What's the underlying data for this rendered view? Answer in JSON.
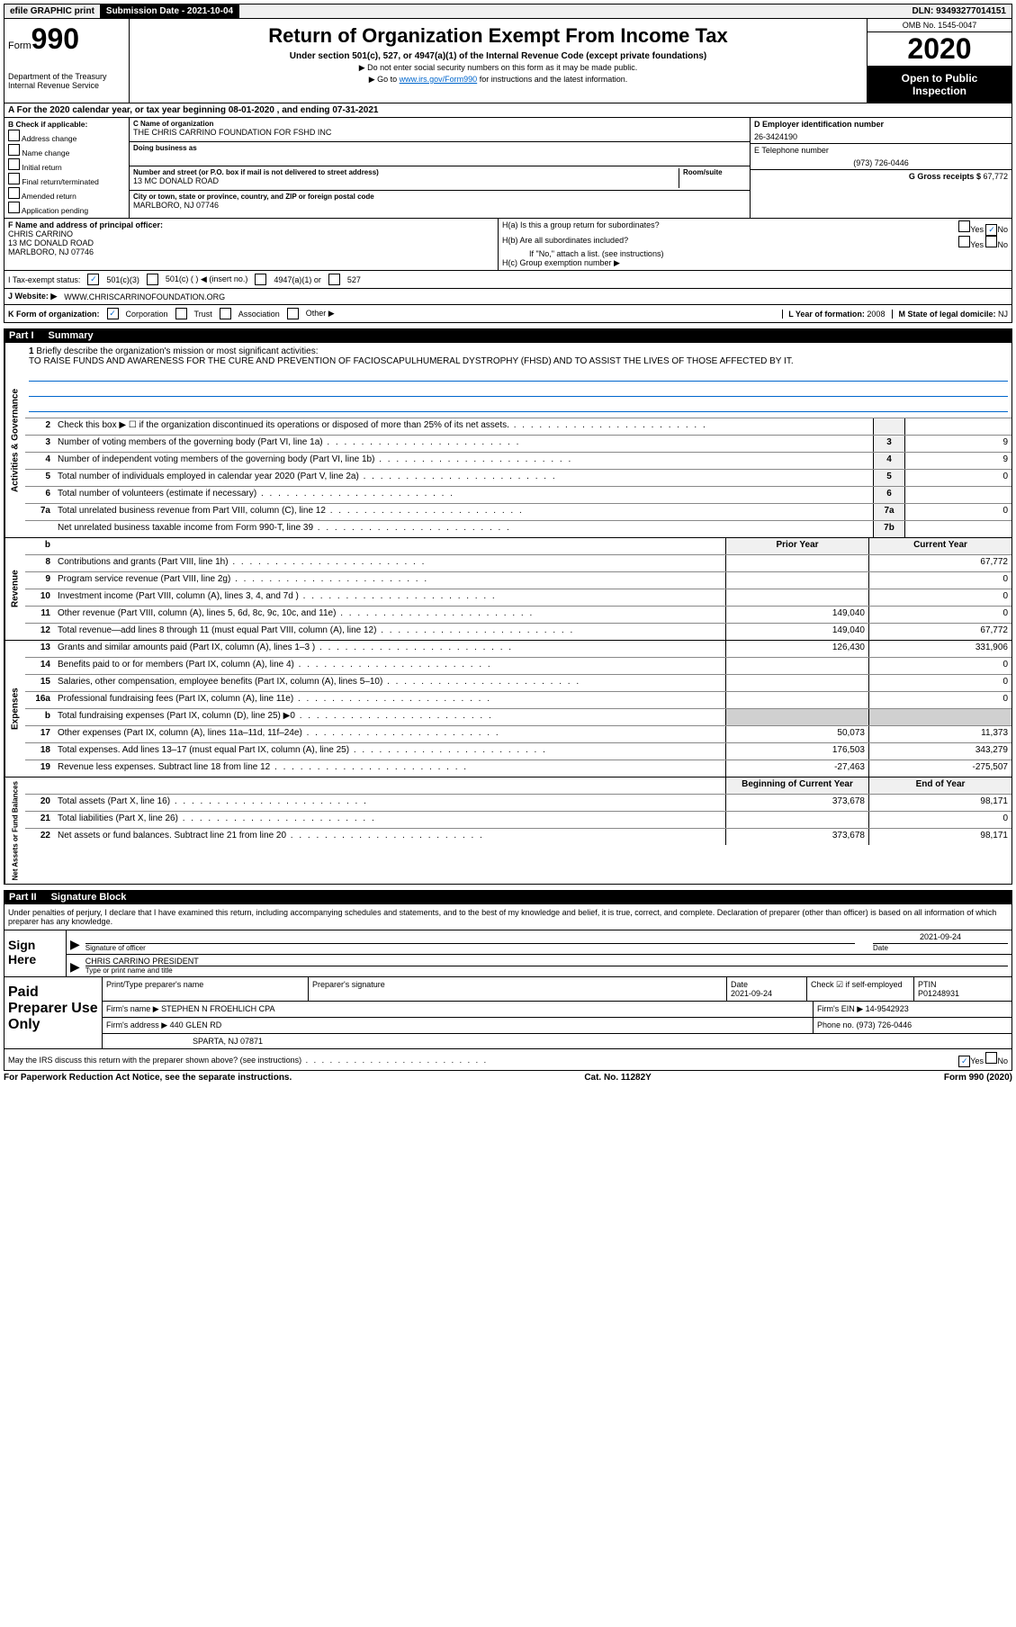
{
  "top": {
    "efile": "efile GRAPHIC print",
    "sub_label": "Submission Date - 2021-10-04",
    "dln": "DLN: 93493277014151"
  },
  "header": {
    "form_word": "Form",
    "form_num": "990",
    "dept": "Department of the Treasury",
    "irs": "Internal Revenue Service",
    "title": "Return of Organization Exempt From Income Tax",
    "sub1": "Under section 501(c), 527, or 4947(a)(1) of the Internal Revenue Code (except private foundations)",
    "sub2": "▶ Do not enter social security numbers on this form as it may be made public.",
    "sub3_pre": "▶ Go to ",
    "sub3_link": "www.irs.gov/Form990",
    "sub3_post": " for instructions and the latest information.",
    "omb": "OMB No. 1545-0047",
    "year": "2020",
    "inspect1": "Open to Public",
    "inspect2": "Inspection"
  },
  "rowA": "A For the 2020 calendar year, or tax year beginning 08-01-2020    , and ending 07-31-2021",
  "colB": {
    "title": "B Check if applicable:",
    "opts": [
      "Address change",
      "Name change",
      "Initial return",
      "Final return/terminated",
      "Amended return",
      "Application pending"
    ]
  },
  "colC": {
    "name_lbl": "C Name of organization",
    "name": "THE CHRIS CARRINO FOUNDATION FOR FSHD INC",
    "dba_lbl": "Doing business as",
    "addr_lbl": "Number and street (or P.O. box if mail is not delivered to street address)",
    "room_lbl": "Room/suite",
    "addr": "13 MC DONALD ROAD",
    "city_lbl": "City or town, state or province, country, and ZIP or foreign postal code",
    "city": "MARLBORO, NJ  07746"
  },
  "colDE": {
    "d_lbl": "D Employer identification number",
    "ein": "26-3424190",
    "e_lbl": "E Telephone number",
    "phone": "(973) 726-0446",
    "g_lbl": "G Gross receipts $",
    "g_val": "67,772"
  },
  "rowF": {
    "lbl": "F Name and address of principal officer:",
    "name": "CHRIS CARRINO",
    "addr1": "13 MC DONALD ROAD",
    "addr2": "MARLBORO, NJ  07746",
    "ha": "H(a)  Is this a group return for subordinates?",
    "hb": "H(b)  Are all subordinates included?",
    "hb_note": "If \"No,\" attach a list. (see instructions)",
    "hc": "H(c)  Group exemption number ▶"
  },
  "rowI": {
    "lbl": "I   Tax-exempt status:",
    "o1": "501(c)(3)",
    "o2": "501(c) (   ) ◀ (insert no.)",
    "o3": "4947(a)(1) or",
    "o4": "527"
  },
  "rowJ": {
    "lbl": "J   Website: ▶",
    "val": "WWW.CHRISCARRINOFOUNDATION.ORG"
  },
  "rowK": {
    "lbl": "K Form of organization:",
    "opts": [
      "Corporation",
      "Trust",
      "Association",
      "Other ▶"
    ],
    "l_lbl": "L Year of formation:",
    "l_val": "2008",
    "m_lbl": "M State of legal domicile:",
    "m_val": "NJ"
  },
  "part1": {
    "num": "Part I",
    "title": "Summary"
  },
  "mission": {
    "num": "1",
    "lbl": "Briefly describe the organization's mission or most significant activities:",
    "text": "TO RAISE FUNDS AND AWARENESS FOR THE CURE AND PREVENTION OF FACIOSCAPULHUMERAL DYSTROPHY (FHSD) AND TO ASSIST THE LIVES OF THOSE AFFECTED BY IT."
  },
  "lines_gov": [
    {
      "n": "2",
      "t": "Check this box ▶ ☐  if the organization discontinued its operations or disposed of more than 25% of its net assets.",
      "box": "",
      "v": ""
    },
    {
      "n": "3",
      "t": "Number of voting members of the governing body (Part VI, line 1a)",
      "box": "3",
      "v": "9"
    },
    {
      "n": "4",
      "t": "Number of independent voting members of the governing body (Part VI, line 1b)",
      "box": "4",
      "v": "9"
    },
    {
      "n": "5",
      "t": "Total number of individuals employed in calendar year 2020 (Part V, line 2a)",
      "box": "5",
      "v": "0"
    },
    {
      "n": "6",
      "t": "Total number of volunteers (estimate if necessary)",
      "box": "6",
      "v": ""
    },
    {
      "n": "7a",
      "t": "Total unrelated business revenue from Part VIII, column (C), line 12",
      "box": "7a",
      "v": "0"
    },
    {
      "n": "",
      "t": "Net unrelated business taxable income from Form 990-T, line 39",
      "box": "7b",
      "v": ""
    }
  ],
  "col_hdr": {
    "prior": "Prior Year",
    "curr": "Current Year"
  },
  "lines_rev": [
    {
      "n": "8",
      "t": "Contributions and grants (Part VIII, line 1h)",
      "p": "",
      "c": "67,772"
    },
    {
      "n": "9",
      "t": "Program service revenue (Part VIII, line 2g)",
      "p": "",
      "c": "0"
    },
    {
      "n": "10",
      "t": "Investment income (Part VIII, column (A), lines 3, 4, and 7d )",
      "p": "",
      "c": "0"
    },
    {
      "n": "11",
      "t": "Other revenue (Part VIII, column (A), lines 5, 6d, 8c, 9c, 10c, and 11e)",
      "p": "149,040",
      "c": "0"
    },
    {
      "n": "12",
      "t": "Total revenue—add lines 8 through 11 (must equal Part VIII, column (A), line 12)",
      "p": "149,040",
      "c": "67,772"
    }
  ],
  "lines_exp": [
    {
      "n": "13",
      "t": "Grants and similar amounts paid (Part IX, column (A), lines 1–3 )",
      "p": "126,430",
      "c": "331,906"
    },
    {
      "n": "14",
      "t": "Benefits paid to or for members (Part IX, column (A), line 4)",
      "p": "",
      "c": "0"
    },
    {
      "n": "15",
      "t": "Salaries, other compensation, employee benefits (Part IX, column (A), lines 5–10)",
      "p": "",
      "c": "0"
    },
    {
      "n": "16a",
      "t": "Professional fundraising fees (Part IX, column (A), line 11e)",
      "p": "",
      "c": "0"
    },
    {
      "n": "b",
      "t": "Total fundraising expenses (Part IX, column (D), line 25) ▶0",
      "p": "SHADE",
      "c": "SHADE"
    },
    {
      "n": "17",
      "t": "Other expenses (Part IX, column (A), lines 11a–11d, 11f–24e)",
      "p": "50,073",
      "c": "11,373"
    },
    {
      "n": "18",
      "t": "Total expenses. Add lines 13–17 (must equal Part IX, column (A), line 25)",
      "p": "176,503",
      "c": "343,279"
    },
    {
      "n": "19",
      "t": "Revenue less expenses. Subtract line 18 from line 12",
      "p": "-27,463",
      "c": "-275,507"
    }
  ],
  "col_hdr2": {
    "prior": "Beginning of Current Year",
    "curr": "End of Year"
  },
  "lines_net": [
    {
      "n": "20",
      "t": "Total assets (Part X, line 16)",
      "p": "373,678",
      "c": "98,171"
    },
    {
      "n": "21",
      "t": "Total liabilities (Part X, line 26)",
      "p": "",
      "c": "0"
    },
    {
      "n": "22",
      "t": "Net assets or fund balances. Subtract line 21 from line 20",
      "p": "373,678",
      "c": "98,171"
    }
  ],
  "vert": {
    "gov": "Activities & Governance",
    "rev": "Revenue",
    "exp": "Expenses",
    "net": "Net Assets or Fund Balances"
  },
  "part2": {
    "num": "Part II",
    "title": "Signature Block"
  },
  "sig": {
    "decl": "Under penalties of perjury, I declare that I have examined this return, including accompanying schedules and statements, and to the best of my knowledge and belief, it is true, correct, and complete. Declaration of preparer (other than officer) is based on all information of which preparer has any knowledge.",
    "sign_here": "Sign Here",
    "sig_officer": "Signature of officer",
    "date_lbl": "Date",
    "date": "2021-09-24",
    "name_title": "CHRIS CARRINO  PRESIDENT",
    "name_title_lbl": "Type or print name and title"
  },
  "paid": {
    "title": "Paid Preparer Use Only",
    "h1": "Print/Type preparer's name",
    "h2": "Preparer's signature",
    "h3": "Date",
    "h4": "Check ☑ if self-employed",
    "h5": "PTIN",
    "date": "2021-09-24",
    "ptin": "P01248931",
    "firm_lbl": "Firm's name   ▶",
    "firm": "STEPHEN N FROEHLICH CPA",
    "ein_lbl": "Firm's EIN ▶",
    "ein": "14-9542923",
    "addr_lbl": "Firm's address ▶",
    "addr1": "440 GLEN RD",
    "addr2": "SPARTA, NJ 07871",
    "phone_lbl": "Phone no.",
    "phone": "(973) 726-0446",
    "discuss": "May the IRS discuss this return with the preparer shown above? (see instructions)"
  },
  "footer": {
    "l": "For Paperwork Reduction Act Notice, see the separate instructions.",
    "m": "Cat. No. 11282Y",
    "r": "Form 990 (2020)"
  }
}
